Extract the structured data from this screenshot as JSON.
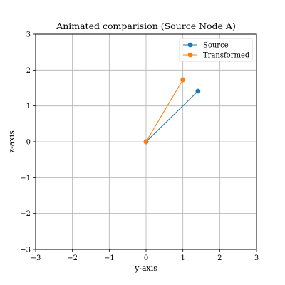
{
  "chart_data": {
    "type": "line",
    "title": "Animated comparision (Source Node A)",
    "xlabel": "y-axis",
    "ylabel": "z-axis",
    "xlim": [
      -3,
      3
    ],
    "ylim": [
      -3,
      3
    ],
    "xticks": [
      -3,
      -2,
      -1,
      0,
      1,
      2,
      3
    ],
    "yticks": [
      -3,
      -2,
      -1,
      0,
      1,
      2,
      3
    ],
    "grid": true,
    "legend_position": "top-right",
    "series": [
      {
        "name": "Source",
        "color": "#1f77b4",
        "x": [
          0,
          1.41
        ],
        "y": [
          0,
          1.41
        ]
      },
      {
        "name": "Transformed",
        "color": "#ff7f0e",
        "x": [
          0,
          1.0
        ],
        "y": [
          0,
          1.73
        ]
      }
    ]
  }
}
